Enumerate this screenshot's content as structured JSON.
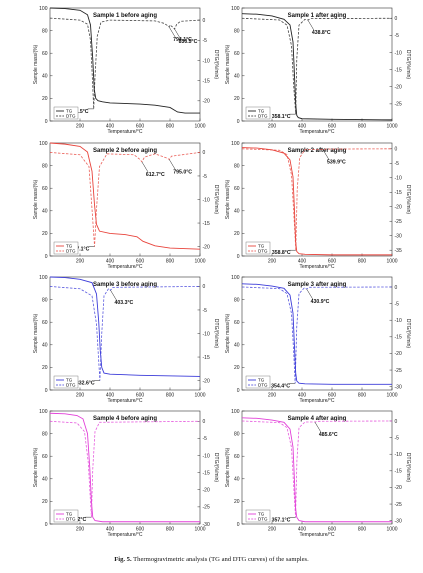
{
  "caption": {
    "label": "Fig. 5.",
    "text": "Thermogravimetric analysis (TG and DTG curves) of the samples."
  },
  "chart_data": [
    {
      "type": "line",
      "title": "Sample 1 before aging",
      "xlabel": "Temperature/°C",
      "ylabel": "Sample mass/(%)",
      "y2label": "DTG/(%/min)",
      "xlim": [
        0,
        1000
      ],
      "ylim": [
        0,
        100
      ],
      "y2lim": [
        -25,
        3
      ],
      "xticks": [
        200,
        400,
        600,
        800,
        1000
      ],
      "yticks": [
        0,
        20,
        40,
        60,
        80,
        100
      ],
      "y2ticks": [
        0,
        -5,
        -10,
        -15,
        -20
      ],
      "color": "#222222",
      "legend": [
        "TG",
        "DTG"
      ],
      "series": [
        {
          "name": "TG",
          "x": [
            0,
            100,
            200,
            250,
            270,
            285,
            295,
            305,
            320,
            350,
            400,
            600,
            700,
            750,
            800,
            850,
            900,
            1000
          ],
          "y": [
            100,
            99.5,
            98,
            94,
            85,
            55,
            28,
            20,
            18,
            17,
            16,
            15,
            14,
            13,
            12,
            8,
            7,
            7
          ]
        },
        {
          "name": "DTG",
          "x": [
            0,
            200,
            250,
            270,
            282,
            291.5,
            300,
            315,
            340,
            400,
            700,
            760,
            790,
            794.1,
            800,
            820,
            830.5,
            845,
            870,
            1000
          ],
          "y": [
            0.5,
            0,
            -1,
            -5,
            -14,
            -22,
            -14,
            -4,
            -0.5,
            0,
            -0.2,
            -0.8,
            -1.5,
            -1.7,
            -1.2,
            -1.8,
            -2.2,
            -1,
            -0.3,
            0
          ]
        }
      ],
      "annotations": [
        {
          "text": "291.5°C",
          "x": 291.5,
          "y": -22,
          "axis": "y2"
        },
        {
          "text": "794.1°C",
          "x": 794.1,
          "y": -1.7,
          "axis": "y2"
        },
        {
          "text": "830.5°C",
          "x": 830.5,
          "y": -2.2,
          "axis": "y2"
        }
      ]
    },
    {
      "type": "line",
      "title": "Sample 1 after aging",
      "xlabel": "Temperature/°C",
      "ylabel": "Sample mass/(%)",
      "y2label": "DTG/(%/min)",
      "xlim": [
        0,
        1000
      ],
      "ylim": [
        0,
        100
      ],
      "y2lim": [
        -30,
        3
      ],
      "xticks": [
        200,
        400,
        600,
        800,
        1000
      ],
      "yticks": [
        0,
        20,
        40,
        60,
        80,
        100
      ],
      "y2ticks": [
        0,
        -5,
        -10,
        -15,
        -20,
        -25
      ],
      "color": "#222222",
      "legend": [
        "TG",
        "DTG"
      ],
      "series": [
        {
          "name": "TG",
          "x": [
            0,
            100,
            200,
            280,
            320,
            340,
            350,
            358,
            365,
            375,
            400,
            600,
            1000
          ],
          "y": [
            95,
            94.5,
            93,
            90,
            85,
            70,
            40,
            15,
            5,
            3,
            2,
            1.5,
            1
          ]
        },
        {
          "name": "DTG",
          "x": [
            0,
            250,
            300,
            330,
            345,
            358.1,
            365,
            380,
            420,
            438.8,
            460,
            1000
          ],
          "y": [
            0,
            -0.5,
            -2,
            -8,
            -20,
            -28,
            -12,
            -2,
            -0.3,
            -0.5,
            -0.1,
            0
          ]
        }
      ],
      "annotations": [
        {
          "text": "358.1°C",
          "x": 358.1,
          "y": -28,
          "axis": "y2"
        },
        {
          "text": "438.8°C",
          "x": 438.8,
          "y": -0.5,
          "axis": "y2"
        }
      ]
    },
    {
      "type": "line",
      "title": "Sample 2 before aging",
      "xlabel": "Temperature/°C",
      "ylabel": "Sample mass/(%)",
      "y2label": "DTG/(%/min)",
      "xlim": [
        0,
        1000
      ],
      "ylim": [
        0,
        100
      ],
      "y2lim": [
        -22,
        2
      ],
      "xticks": [
        200,
        400,
        600,
        800,
        1000
      ],
      "yticks": [
        0,
        20,
        40,
        60,
        80,
        100
      ],
      "y2ticks": [
        0,
        -5,
        -10,
        -15,
        -20
      ],
      "color": "#e8443c",
      "legend": [
        "TG",
        "DTG"
      ],
      "series": [
        {
          "name": "TG",
          "x": [
            0,
            100,
            200,
            250,
            280,
            297,
            310,
            330,
            400,
            500,
            580,
            620,
            700,
            800,
            1000
          ],
          "y": [
            100,
            99,
            97,
            92,
            75,
            45,
            28,
            22,
            20,
            19,
            17,
            13,
            9,
            7,
            6
          ]
        },
        {
          "name": "DTG",
          "x": [
            0,
            200,
            260,
            280,
            297.1,
            310,
            330,
            380,
            560,
            600,
            612.7,
            630,
            700,
            780,
            795,
            810,
            1000
          ],
          "y": [
            0,
            -0.5,
            -3,
            -12,
            -20,
            -12,
            -3,
            -0.3,
            -0.5,
            -1.5,
            -2,
            -1,
            -0.3,
            -1.2,
            -1.5,
            -0.8,
            0
          ]
        }
      ],
      "annotations": [
        {
          "text": "297.1°C",
          "x": 297.1,
          "y": -20,
          "axis": "y2"
        },
        {
          "text": "612.7°C",
          "x": 612.7,
          "y": -2,
          "axis": "y2"
        },
        {
          "text": "795.0°C",
          "x": 795,
          "y": -1.5,
          "axis": "y2"
        }
      ]
    },
    {
      "type": "line",
      "title": "Sample 2 after aging",
      "xlabel": "Temperature/°C",
      "ylabel": "Sample mass/(%)",
      "y2label": "DTG/(%/min)",
      "xlim": [
        0,
        1000
      ],
      "ylim": [
        0,
        100
      ],
      "y2lim": [
        -37,
        2
      ],
      "xticks": [
        200,
        400,
        600,
        800,
        1000
      ],
      "yticks": [
        0,
        20,
        40,
        60,
        80,
        100
      ],
      "y2ticks": [
        0,
        -5,
        -10,
        -15,
        -20,
        -25,
        -30,
        -35
      ],
      "color": "#e8443c",
      "legend": [
        "TG",
        "DTG"
      ],
      "series": [
        {
          "name": "TG",
          "x": [
            0,
            100,
            200,
            280,
            320,
            340,
            350,
            358,
            365,
            380,
            420,
            600,
            1000
          ],
          "y": [
            96,
            95.5,
            94,
            91,
            85,
            70,
            40,
            12,
            4,
            2,
            1.5,
            1,
            1
          ]
        },
        {
          "name": "DTG",
          "x": [
            0,
            250,
            300,
            330,
            345,
            358.8,
            368,
            385,
            420,
            539.9,
            560,
            1000
          ],
          "y": [
            0,
            -0.5,
            -2,
            -9,
            -22,
            -35,
            -14,
            -3,
            -0.3,
            -0.3,
            -0.1,
            0
          ]
        }
      ],
      "annotations": [
        {
          "text": "358.8°C",
          "x": 358.8,
          "y": -35,
          "axis": "y2"
        },
        {
          "text": "539.9°C",
          "x": 539.9,
          "y": -0.3,
          "axis": "y2"
        }
      ]
    },
    {
      "type": "line",
      "title": "Sample 3 before aging",
      "xlabel": "Temperature/°C",
      "ylabel": "Sample mass/(%)",
      "y2label": "DTG/(%/min)",
      "xlim": [
        0,
        1000
      ],
      "ylim": [
        0,
        100
      ],
      "y2lim": [
        -22,
        2
      ],
      "xticks": [
        200,
        400,
        600,
        800,
        1000
      ],
      "yticks": [
        0,
        20,
        40,
        60,
        80,
        100
      ],
      "y2ticks": [
        0,
        -5,
        -10,
        -15,
        -20
      ],
      "color": "#3b3bd9",
      "legend": [
        "TG",
        "DTG"
      ],
      "series": [
        {
          "name": "TG",
          "x": [
            0,
            100,
            200,
            280,
            310,
            325,
            335,
            345,
            360,
            400,
            600,
            1000
          ],
          "y": [
            100,
            99.5,
            98,
            95,
            85,
            60,
            35,
            20,
            15,
            14,
            13,
            12
          ]
        },
        {
          "name": "DTG",
          "x": [
            0,
            200,
            280,
            310,
            325,
            332.6,
            345,
            360,
            390,
            403.3,
            420,
            1000
          ],
          "y": [
            0,
            -0.5,
            -2,
            -8,
            -16,
            -20,
            -10,
            -2,
            -0.5,
            -0.8,
            -0.2,
            0
          ]
        }
      ],
      "annotations": [
        {
          "text": "332.6°C",
          "x": 332.6,
          "y": -20,
          "axis": "y2"
        },
        {
          "text": "403.3°C",
          "x": 403.3,
          "y": -0.8,
          "axis": "y2"
        }
      ]
    },
    {
      "type": "line",
      "title": "Sample 3 after aging",
      "xlabel": "Temperature/°C",
      "ylabel": "Sample mass/(%)",
      "y2label": "DTG/(%/min)",
      "xlim": [
        0,
        1000
      ],
      "ylim": [
        0,
        100
      ],
      "y2lim": [
        -31,
        3
      ],
      "xticks": [
        200,
        400,
        600,
        800,
        1000
      ],
      "yticks": [
        0,
        20,
        40,
        60,
        80,
        100
      ],
      "y2ticks": [
        0,
        -5,
        -10,
        -15,
        -20,
        -25,
        -30
      ],
      "color": "#3b3bd9",
      "legend": [
        "TG",
        "DTG"
      ],
      "series": [
        {
          "name": "TG",
          "x": [
            0,
            100,
            200,
            280,
            320,
            340,
            350,
            358,
            365,
            380,
            420,
            600,
            1000
          ],
          "y": [
            94,
            93.5,
            92,
            90,
            84,
            68,
            38,
            15,
            8,
            6,
            5.5,
            5,
            5
          ]
        },
        {
          "name": "DTG",
          "x": [
            0,
            250,
            300,
            330,
            345,
            354.4,
            365,
            380,
            415,
            430.9,
            450,
            1000
          ],
          "y": [
            0,
            -0.5,
            -2,
            -8,
            -20,
            -29,
            -12,
            -2,
            -0.3,
            -0.6,
            -0.1,
            0
          ]
        }
      ],
      "annotations": [
        {
          "text": "354.4°C",
          "x": 354.4,
          "y": -29,
          "axis": "y2"
        },
        {
          "text": "430.9°C",
          "x": 430.9,
          "y": -0.6,
          "axis": "y2"
        }
      ]
    },
    {
      "type": "line",
      "title": "Sample 4 before aging",
      "xlabel": "Temperature/°C",
      "ylabel": "Sample mass/(%)",
      "y2label": "DTG/(%/min)",
      "xlim": [
        0,
        1000
      ],
      "ylim": [
        0,
        100
      ],
      "y2lim": [
        -30,
        3
      ],
      "xticks": [
        200,
        400,
        600,
        800,
        1000
      ],
      "yticks": [
        0,
        20,
        40,
        60,
        80,
        100
      ],
      "y2ticks": [
        0,
        -5,
        -10,
        -15,
        -20,
        -25,
        -30
      ],
      "color": "#e23fd8",
      "legend": [
        "TG",
        "DTG"
      ],
      "series": [
        {
          "name": "TG",
          "x": [
            0,
            100,
            180,
            220,
            250,
            265,
            276,
            285,
            300,
            350,
            1000
          ],
          "y": [
            98,
            97.5,
            96,
            93,
            80,
            50,
            20,
            6,
            3,
            2,
            2
          ]
        },
        {
          "name": "DTG",
          "x": [
            0,
            180,
            230,
            255,
            268,
            276.2,
            285,
            300,
            330,
            1000
          ],
          "y": [
            0,
            -0.5,
            -3,
            -12,
            -22,
            -28,
            -14,
            -3,
            -0.3,
            0
          ]
        }
      ],
      "annotations": [
        {
          "text": "276.2°C",
          "x": 276.2,
          "y": -28,
          "axis": "y2"
        }
      ]
    },
    {
      "type": "line",
      "title": "Sample 4 after aging",
      "xlabel": "Temperature/°C",
      "ylabel": "Sample mass/(%)",
      "y2label": "DTG/(%/min)",
      "xlim": [
        0,
        1000
      ],
      "ylim": [
        0,
        100
      ],
      "y2lim": [
        -31,
        3
      ],
      "xticks": [
        200,
        400,
        600,
        800,
        1000
      ],
      "yticks": [
        0,
        20,
        40,
        60,
        80,
        100
      ],
      "y2ticks": [
        0,
        -5,
        -10,
        -15,
        -20,
        -25,
        -30
      ],
      "color": "#e23fd8",
      "legend": [
        "TG",
        "DTG"
      ],
      "series": [
        {
          "name": "TG",
          "x": [
            0,
            100,
            200,
            280,
            320,
            340,
            350,
            357,
            365,
            380,
            420,
            600,
            1000
          ],
          "y": [
            94,
            93.5,
            92,
            90,
            84,
            68,
            38,
            14,
            6,
            3,
            2,
            2,
            2
          ]
        },
        {
          "name": "DTG",
          "x": [
            0,
            250,
            300,
            330,
            345,
            357.1,
            366,
            380,
            420,
            485.6,
            505,
            1000
          ],
          "y": [
            0,
            -0.5,
            -2,
            -8,
            -20,
            -29,
            -12,
            -2,
            -0.3,
            -0.3,
            -0.1,
            0
          ]
        }
      ],
      "annotations": [
        {
          "text": "357.1°C",
          "x": 357.1,
          "y": -29,
          "axis": "y2"
        },
        {
          "text": "485.6°C",
          "x": 485.6,
          "y": -0.3,
          "axis": "y2"
        }
      ]
    }
  ]
}
